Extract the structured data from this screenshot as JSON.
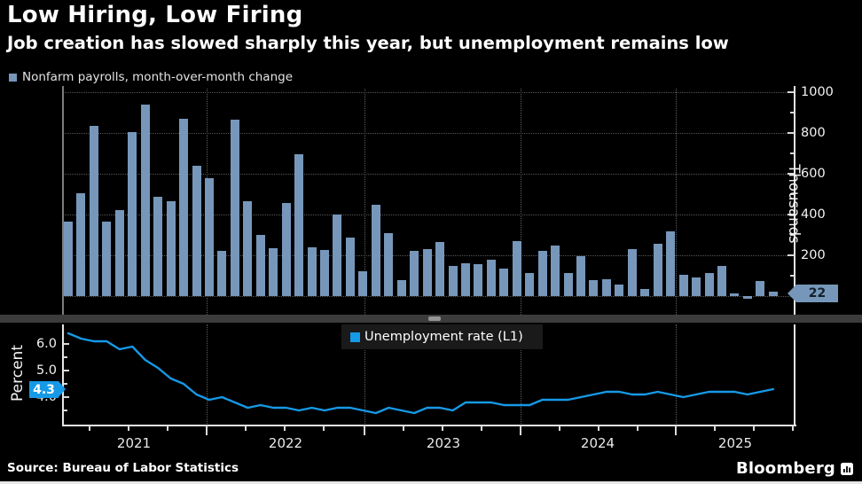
{
  "header": {
    "title": "Low Hiring, Low Firing",
    "subtitle": "Job creation has slowed sharply this year, but unemployment remains low"
  },
  "colors": {
    "bar": "#7697ba",
    "line": "#1699e6",
    "background": "#000000",
    "grid": "#565656",
    "axis": "#e6e6e6"
  },
  "top_panel": {
    "legend_label": "Nonfarm payrolls, month-over-month change",
    "axis_title": "Thousands",
    "y_tick_labels": [
      "1000",
      "800",
      "600",
      "400",
      "200"
    ],
    "last_value_badge": "22"
  },
  "bottom_panel": {
    "legend_label": "Unemployment rate (L1)",
    "axis_title": "Percent",
    "y_tick_labels": [
      "6.0",
      "5.0",
      "4.0"
    ],
    "last_value_badge": "4.3"
  },
  "x_axis": {
    "year_labels": [
      "2021",
      "2022",
      "2023",
      "2024",
      "2025"
    ]
  },
  "footer": {
    "source": "Source: Bureau of Labor Statistics",
    "brand": "Bloomberg"
  },
  "chart_data": {
    "months": [
      "2021-01",
      "2021-02",
      "2021-03",
      "2021-04",
      "2021-05",
      "2021-06",
      "2021-07",
      "2021-08",
      "2021-09",
      "2021-10",
      "2021-11",
      "2021-12",
      "2022-01",
      "2022-02",
      "2022-03",
      "2022-04",
      "2022-05",
      "2022-06",
      "2022-07",
      "2022-08",
      "2022-09",
      "2022-10",
      "2022-11",
      "2022-12",
      "2023-01",
      "2023-02",
      "2023-03",
      "2023-04",
      "2023-05",
      "2023-06",
      "2023-07",
      "2023-08",
      "2023-09",
      "2023-10",
      "2023-11",
      "2023-12",
      "2024-01",
      "2024-02",
      "2024-03",
      "2024-04",
      "2024-05",
      "2024-06",
      "2024-07",
      "2024-08",
      "2024-09",
      "2024-10",
      "2024-11",
      "2024-12",
      "2025-01",
      "2025-02",
      "2025-03",
      "2025-04",
      "2025-05",
      "2025-06",
      "2025-07",
      "2025-08"
    ],
    "charts": [
      {
        "type": "bar",
        "title": "Nonfarm payrolls, month-over-month change",
        "ylabel": "Thousands",
        "yticks": [
          200,
          400,
          600,
          800,
          1000
        ],
        "ylim": [
          -50,
          1050
        ],
        "grid": "dotted-horizontal",
        "legend_position": "top-left",
        "values": [
          364,
          506,
          834,
          364,
          421,
          803,
          940,
          488,
          466,
          869,
          639,
          577,
          222,
          865,
          466,
          302,
          235,
          456,
          697,
          238,
          224,
          398,
          288,
          120,
          447,
          310,
          80,
          220,
          230,
          265,
          148,
          161,
          158,
          180,
          135,
          270,
          114,
          223,
          248,
          115,
          195,
          80,
          84,
          55,
          231,
          33,
          257,
          319,
          104,
          90,
          114,
          149,
          15,
          -13,
          75,
          22
        ]
      },
      {
        "type": "line",
        "title": "Unemployment rate (L1)",
        "ylabel": "Percent",
        "yticks": [
          4.0,
          5.0,
          6.0
        ],
        "ylim": [
          3.2,
          6.6
        ],
        "grid": "none",
        "legend_position": "top-center",
        "values": [
          6.4,
          6.2,
          6.1,
          6.1,
          5.8,
          5.9,
          5.4,
          5.1,
          4.7,
          4.5,
          4.1,
          3.9,
          4.0,
          3.8,
          3.6,
          3.7,
          3.6,
          3.6,
          3.5,
          3.6,
          3.5,
          3.6,
          3.6,
          3.5,
          3.4,
          3.6,
          3.5,
          3.4,
          3.6,
          3.6,
          3.5,
          3.8,
          3.8,
          3.8,
          3.7,
          3.7,
          3.7,
          3.9,
          3.9,
          3.9,
          4.0,
          4.1,
          4.2,
          4.2,
          4.1,
          4.1,
          4.2,
          4.1,
          4.0,
          4.1,
          4.2,
          4.2,
          4.2,
          4.1,
          4.2,
          4.3
        ]
      }
    ]
  }
}
